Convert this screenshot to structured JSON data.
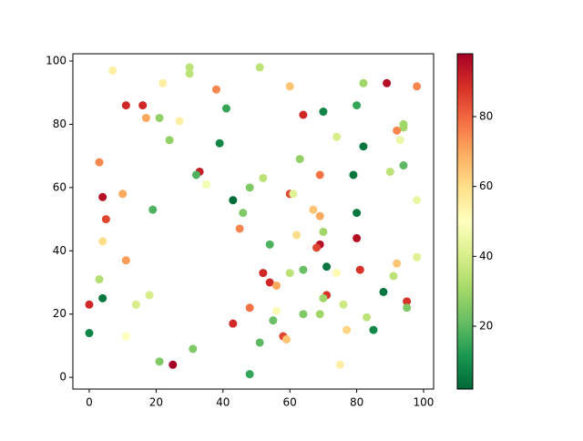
{
  "chart_data": {
    "type": "scatter",
    "x": [
      30,
      51,
      7,
      30,
      22,
      82,
      89,
      98,
      60,
      38,
      11,
      16,
      41,
      80,
      70,
      64,
      17,
      21,
      27,
      94,
      94,
      92,
      74,
      24,
      93,
      39,
      82,
      63,
      3,
      94,
      90,
      33,
      32,
      69,
      79,
      52,
      35,
      48,
      4,
      10,
      60,
      61,
      43,
      98,
      19,
      67,
      46,
      80,
      69,
      5,
      45,
      70,
      62,
      80,
      4,
      54,
      69,
      68,
      11,
      92,
      71,
      64,
      81,
      60,
      52,
      74,
      91,
      3,
      54,
      56,
      88,
      71,
      70,
      4,
      18,
      95,
      14,
      0,
      76,
      48,
      95,
      64,
      56,
      69,
      83,
      55,
      43,
      77,
      85,
      0,
      58,
      59,
      11,
      51,
      75,
      21,
      25,
      31,
      48,
      98
    ],
    "y": [
      98,
      98,
      97,
      96,
      93,
      93,
      93,
      92,
      92,
      91,
      86,
      86,
      85,
      86,
      84,
      83,
      82,
      82,
      81,
      80,
      79,
      78,
      76,
      75,
      75,
      74,
      73,
      69,
      68,
      67,
      65,
      65,
      64,
      64,
      64,
      63,
      61,
      60,
      57,
      58,
      58,
      58,
      56,
      56,
      53,
      53,
      52,
      52,
      51,
      50,
      47,
      46,
      45,
      44,
      43,
      42,
      42,
      41,
      37,
      36,
      35,
      34,
      34,
      33,
      33,
      33,
      32,
      31,
      30,
      29,
      27,
      26,
      25,
      25,
      26,
      24,
      23,
      23,
      23,
      22,
      22,
      20,
      21,
      20,
      19,
      18,
      17,
      15,
      15,
      14,
      13,
      12,
      13,
      11,
      4,
      5,
      4,
      9,
      1,
      38
    ],
    "c": [
      35,
      35,
      55,
      35,
      55,
      30,
      95,
      75,
      65,
      75,
      90,
      90,
      15,
      15,
      8,
      90,
      70,
      28,
      55,
      30,
      30,
      75,
      40,
      28,
      45,
      8,
      5,
      28,
      75,
      20,
      35,
      92,
      18,
      78,
      5,
      35,
      48,
      25,
      95,
      70,
      85,
      42,
      3,
      45,
      18,
      65,
      25,
      5,
      70,
      85,
      75,
      30,
      60,
      95,
      60,
      18,
      95,
      85,
      72,
      65,
      5,
      22,
      88,
      35,
      90,
      52,
      35,
      33,
      90,
      70,
      5,
      88,
      30,
      5,
      40,
      88,
      40,
      90,
      38,
      78,
      25,
      25,
      52,
      30,
      35,
      22,
      90,
      62,
      8,
      8,
      85,
      65,
      50,
      20,
      55,
      25,
      98,
      25,
      15,
      42
    ],
    "xlim": [
      -4.9,
      103
    ],
    "ylim": [
      -3.7,
      102.3
    ],
    "xticks": [
      0,
      20,
      40,
      60,
      80,
      100
    ],
    "yticks": [
      0,
      20,
      40,
      60,
      80,
      100
    ],
    "colorbar": {
      "clim": [
        2,
        98
      ],
      "ticks": [
        20,
        40,
        60,
        80
      ],
      "cmap": [
        "#006837",
        "#1a9850",
        "#66bd63",
        "#a6d96a",
        "#d9ef8b",
        "#ffffbf",
        "#fee08b",
        "#fdae61",
        "#f46d43",
        "#d73027",
        "#a50026"
      ]
    }
  }
}
